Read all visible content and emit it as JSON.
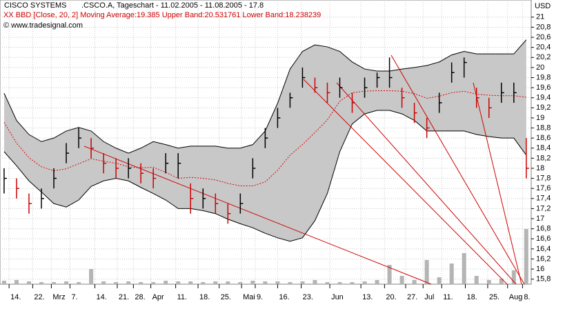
{
  "chart_data": {
    "type": "ohlc",
    "title": "CISCO SYSTEMS",
    "subtitle": ".CSCO.A, Tageschart - 11.02.2005 - 11.08.2005 - 17.8",
    "indicator": "XX BBD [Close, 20, 2] Moving Average:19.385 Upper Band:20.531761 Lower Band:18.238239",
    "source": "© www.tradesignal.com",
    "y_axis_label": "USD",
    "high": [
      18.0,
      17.8,
      17.5,
      17.6,
      18.0,
      18.5,
      18.8,
      18.6,
      18.3,
      18.2,
      18.2,
      18.1,
      18.0,
      18.3,
      18.3,
      17.7,
      17.6,
      17.5,
      17.3,
      17.5,
      18.2,
      18.8,
      19.2,
      19.5,
      20.0,
      19.8,
      19.7,
      19.8,
      19.5,
      19.8,
      19.9,
      20.2,
      19.6,
      19.3,
      19.0,
      19.5,
      20.1,
      20.2,
      19.6,
      19.4,
      19.7,
      19.7,
      18.6
    ],
    "low": [
      17.5,
      17.4,
      17.1,
      17.2,
      17.6,
      18.1,
      18.4,
      18.2,
      17.9,
      17.8,
      17.8,
      17.7,
      17.6,
      17.9,
      17.8,
      17.1,
      17.2,
      17.1,
      16.9,
      17.1,
      17.8,
      18.4,
      18.8,
      19.2,
      19.6,
      19.5,
      19.3,
      19.4,
      19.1,
      19.4,
      19.6,
      19.6,
      19.2,
      18.9,
      18.6,
      19.1,
      19.7,
      19.8,
      19.2,
      19.0,
      19.3,
      19.3,
      17.8
    ],
    "close": [
      17.8,
      17.6,
      17.3,
      17.4,
      17.8,
      18.3,
      18.6,
      18.4,
      18.1,
      18.0,
      18.0,
      17.9,
      17.8,
      18.1,
      18.1,
      17.4,
      17.4,
      17.3,
      17.1,
      17.3,
      18.0,
      18.6,
      19.0,
      19.4,
      19.8,
      19.6,
      19.5,
      19.6,
      19.3,
      19.6,
      19.8,
      19.8,
      19.4,
      19.1,
      18.8,
      19.3,
      19.9,
      20.1,
      19.4,
      19.2,
      19.5,
      19.5,
      18.0
    ],
    "upper_band": [
      19.49,
      18.95,
      18.67,
      18.53,
      18.6,
      18.74,
      18.81,
      18.74,
      18.53,
      18.4,
      18.3,
      18.4,
      18.53,
      18.47,
      18.4,
      18.44,
      18.44,
      18.44,
      18.4,
      18.4,
      18.47,
      18.74,
      19.29,
      19.97,
      20.32,
      20.45,
      20.41,
      20.32,
      20.11,
      19.97,
      19.93,
      19.93,
      19.97,
      20.0,
      20.04,
      20.11,
      20.25,
      20.32,
      20.27,
      20.27,
      20.27,
      20.27,
      20.55
    ],
    "moving_average": [
      18.91,
      18.5,
      18.21,
      18.03,
      17.95,
      17.99,
      18.09,
      18.19,
      18.14,
      18.1,
      18.03,
      18.01,
      18.02,
      17.92,
      17.8,
      17.82,
      17.8,
      17.77,
      17.7,
      17.65,
      17.65,
      17.73,
      17.96,
      18.26,
      18.47,
      18.71,
      18.96,
      19.33,
      19.5,
      19.53,
      19.54,
      19.54,
      19.53,
      19.48,
      19.39,
      19.43,
      19.5,
      19.53,
      19.47,
      19.45,
      19.44,
      19.44,
      19.41
    ],
    "lower_band": [
      18.33,
      18.05,
      17.75,
      17.53,
      17.3,
      17.23,
      17.37,
      17.64,
      17.75,
      17.8,
      17.75,
      17.62,
      17.5,
      17.37,
      17.2,
      17.2,
      17.16,
      17.1,
      16.99,
      16.9,
      16.82,
      16.71,
      16.62,
      16.55,
      16.62,
      16.96,
      17.5,
      18.33,
      18.88,
      19.08,
      19.15,
      19.15,
      19.08,
      18.95,
      18.74,
      18.74,
      18.74,
      18.74,
      18.67,
      18.63,
      18.6,
      18.6,
      18.26
    ],
    "volume": [
      5,
      6,
      4,
      3,
      3,
      4,
      3,
      22,
      4,
      3,
      4,
      3,
      3,
      5,
      4,
      4,
      3,
      4,
      4,
      3,
      5,
      4,
      4,
      3,
      4,
      6,
      3,
      3,
      3,
      4,
      6,
      28,
      12,
      6,
      35,
      10,
      30,
      45,
      12,
      6,
      8,
      20,
      80
    ],
    "up_color": "#000000",
    "down_color": "#cc0000",
    "band_color": "#c8c8c8",
    "ma_color": "#e00000",
    "volume_color": "#b4b4b4",
    "xlim": [
      -0.33,
      42.4
    ],
    "xticks": [
      {
        "value": 0.4,
        "label": "14."
      },
      {
        "value": 2.3,
        "label": "22."
      },
      {
        "value": 3.8,
        "label": "Mrz"
      },
      {
        "value": 5.3,
        "label": "7."
      },
      {
        "value": 7.3,
        "label": "14."
      },
      {
        "value": 9.1,
        "label": "21."
      },
      {
        "value": 10.4,
        "label": "28."
      },
      {
        "value": 11.8,
        "label": "Apr"
      },
      {
        "value": 13.8,
        "label": "11."
      },
      {
        "value": 15.6,
        "label": "18."
      },
      {
        "value": 17.3,
        "label": "25."
      },
      {
        "value": 19.1,
        "label": "Mai"
      },
      {
        "value": 20.2,
        "label": "9."
      },
      {
        "value": 22,
        "label": "16."
      },
      {
        "value": 23.9,
        "label": "23."
      },
      {
        "value": 26.2,
        "label": "Jun"
      },
      {
        "value": 28.7,
        "label": "13."
      },
      {
        "value": 30.6,
        "label": "20."
      },
      {
        "value": 32.3,
        "label": "27."
      },
      {
        "value": 33.7,
        "label": "Jul"
      },
      {
        "value": 35.2,
        "label": "11."
      },
      {
        "value": 37.1,
        "label": "18."
      },
      {
        "value": 38.9,
        "label": "25."
      },
      {
        "value": 40.5,
        "label": "Aug"
      },
      {
        "value": 41.7,
        "label": "8."
      }
    ],
    "ylim": [
      15.7,
      21.34
    ],
    "yticks": [
      {
        "value": 15.8,
        "label": "15,8"
      },
      16,
      {
        "value": 16.2,
        "label": "16,2"
      },
      {
        "value": 16.4,
        "label": "16,4"
      },
      {
        "value": 16.6,
        "label": "16,6"
      },
      {
        "value": 16.8,
        "label": "16,8"
      },
      17,
      {
        "value": 17.2,
        "label": "17,2"
      },
      {
        "value": 17.4,
        "label": "17,4"
      },
      {
        "value": 17.6,
        "label": "17,6"
      },
      {
        "value": 17.8,
        "label": "17,8"
      },
      18,
      {
        "value": 18.2,
        "label": "18,2"
      },
      {
        "value": 18.4,
        "label": "18,4"
      },
      {
        "value": 18.6,
        "label": "18,6"
      },
      {
        "value": 18.8,
        "label": "18,8"
      },
      19,
      {
        "value": 19.2,
        "label": "19,2"
      },
      {
        "value": 19.4,
        "label": "19,4"
      },
      {
        "value": 19.6,
        "label": "19,6"
      },
      {
        "value": 19.8,
        "label": "19,8"
      },
      20,
      {
        "value": 20.2,
        "label": "20,2"
      },
      {
        "value": 20.4,
        "label": "20,4"
      },
      {
        "value": 20.6,
        "label": "20,6"
      },
      {
        "value": 20.8,
        "label": "20,8"
      },
      21
    ],
    "y2lim": [
      0,
      100
    ],
    "grid": true
  }
}
